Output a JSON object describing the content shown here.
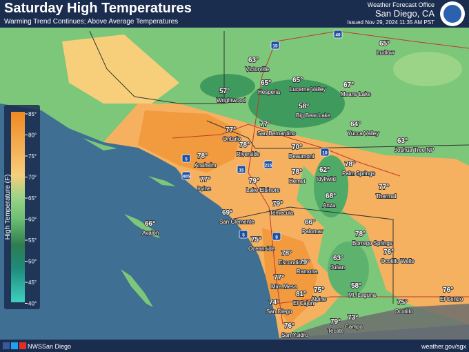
{
  "header": {
    "title": "Saturday High Temperatures",
    "subtitle": "Warming Trend Continues; Above Average Temperatures",
    "office": "Weather Forecast Office",
    "location": "San Diego, CA",
    "issued": "Issued Nov 29, 2024 11:35 AM PST"
  },
  "legend": {
    "title": "High Temperature (F)",
    "ticks": [
      "85°",
      "80°",
      "75°",
      "70°",
      "65°",
      "60°",
      "55°",
      "50°",
      "45°",
      "40°"
    ]
  },
  "highways": [
    "15",
    "40",
    "10",
    "5",
    "405",
    "215",
    "15",
    "5",
    "8"
  ],
  "locations": [
    {
      "name": "Victorville",
      "temp": "63°"
    },
    {
      "name": "Ludlow",
      "temp": "65°"
    },
    {
      "name": "Hesperia",
      "temp": "65°"
    },
    {
      "name": "Lucerne Valley",
      "temp": "65°"
    },
    {
      "name": "Means Lake",
      "temp": "67°"
    },
    {
      "name": "Wrightwood",
      "temp": "57°"
    },
    {
      "name": "Big Bear Lake",
      "temp": "58°"
    },
    {
      "name": "Yucca Valley",
      "temp": "64°"
    },
    {
      "name": "Joshua Tree NP",
      "temp": "63°"
    },
    {
      "name": "Ontario",
      "temp": "77°"
    },
    {
      "name": "San Bernardino",
      "temp": "77°"
    },
    {
      "name": "Riverside",
      "temp": "78°"
    },
    {
      "name": "Beaumont",
      "temp": "70°"
    },
    {
      "name": "Anaheim",
      "temp": "78°"
    },
    {
      "name": "Hemet",
      "temp": "78°"
    },
    {
      "name": "Idyllwild",
      "temp": "62°"
    },
    {
      "name": "Palm Springs",
      "temp": "78°"
    },
    {
      "name": "Irvine",
      "temp": "77°"
    },
    {
      "name": "Lake Elsinore",
      "temp": "79°"
    },
    {
      "name": "Thermal",
      "temp": "77°"
    },
    {
      "name": "Anza",
      "temp": "68°"
    },
    {
      "name": "Temecula",
      "temp": "79°"
    },
    {
      "name": "San Clemente",
      "temp": "69°"
    },
    {
      "name": "Avalon",
      "temp": "66°"
    },
    {
      "name": "Palomar",
      "temp": "66°"
    },
    {
      "name": "Borrego Springs",
      "temp": "78°"
    },
    {
      "name": "Oceanside",
      "temp": "75°"
    },
    {
      "name": "Ocotillo Wells",
      "temp": "76°"
    },
    {
      "name": "Escondido",
      "temp": "78°"
    },
    {
      "name": "Ramona",
      "temp": "79°"
    },
    {
      "name": "Julian",
      "temp": "63°"
    },
    {
      "name": "Mira Mesa",
      "temp": "77°"
    },
    {
      "name": "Mt. Laguna",
      "temp": "58°"
    },
    {
      "name": "Alpine",
      "temp": "75°"
    },
    {
      "name": "El Cajon",
      "temp": "81°"
    },
    {
      "name": "San Diego",
      "temp": "74°"
    },
    {
      "name": "Ocotillo",
      "temp": "75°"
    },
    {
      "name": "El Centro",
      "temp": "76°"
    },
    {
      "name": "Campo",
      "temp": "73°"
    },
    {
      "name": "Tecate",
      "temp": "79°"
    },
    {
      "name": "San Ysidro",
      "temp": "76°"
    }
  ],
  "footer": {
    "handle": "NWSSan Diego",
    "url": "weather.gov/sgx"
  }
}
